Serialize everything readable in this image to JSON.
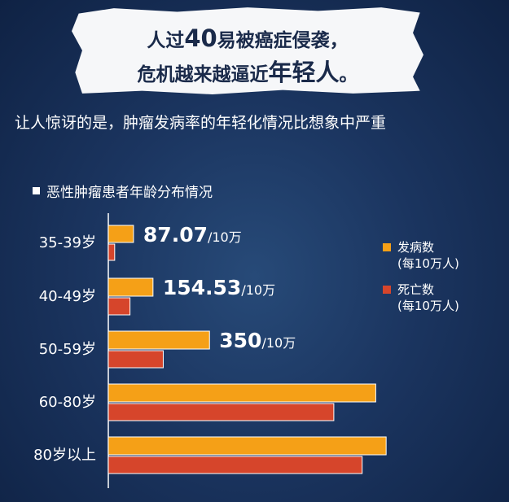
{
  "banner": {
    "line1_pre": "人过",
    "line1_num": "40",
    "line1_post": "易被癌症侵袭，",
    "line2_pre": "危机越来越逼近",
    "line2_em": "年轻人",
    "line2_post": "。"
  },
  "subtitle": "让人惊讶的是，肿瘤发病率的年轻化情况比想象中严重",
  "chart_data": {
    "type": "bar",
    "orientation": "horizontal",
    "title": "恶性肿瘤患者年龄分布情况",
    "categories": [
      "35-39岁",
      "40-49岁",
      "50-59岁",
      "60-80岁",
      "80岁以上"
    ],
    "series": [
      {
        "name": "发病数",
        "unit": "(每10万人)",
        "color": "#f5a017",
        "values": [
          87.07,
          154.53,
          350,
          925,
          961
        ],
        "labels": [
          "87.07",
          "154.53",
          "350",
          "",
          ""
        ]
      },
      {
        "name": "死亡数",
        "unit": "(每10万人)",
        "color": "#d6452b",
        "values": [
          22,
          75,
          190,
          780,
          878
        ]
      }
    ],
    "label_suffix": "/10万",
    "xlim": [
      0,
      1000
    ]
  }
}
